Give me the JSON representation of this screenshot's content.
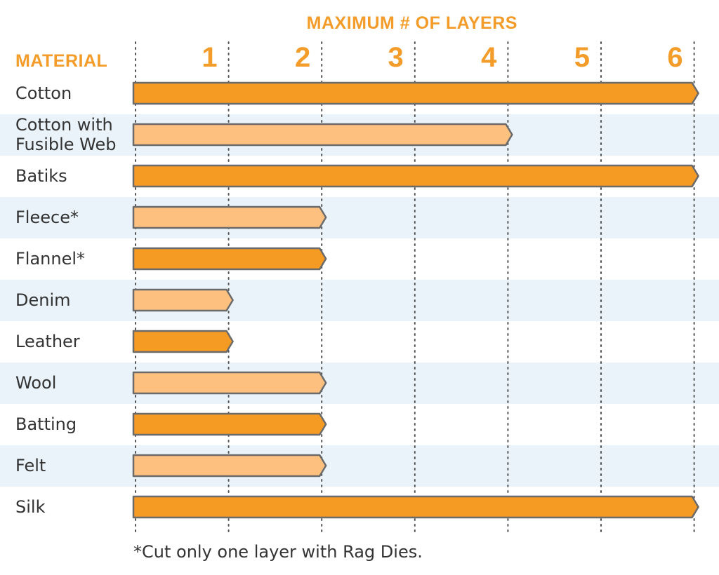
{
  "chart_data": {
    "type": "bar",
    "orientation": "horizontal",
    "title": "MAXIMUM # OF LAYERS",
    "category_header": "MATERIAL",
    "x_ticks": [
      "1",
      "2",
      "3",
      "4",
      "5",
      "6"
    ],
    "xlim": [
      0,
      6
    ],
    "categories": [
      "Cotton",
      "Cotton with Fusible Web",
      "Batiks",
      "Fleece*",
      "Flannel*",
      "Denim",
      "Leather",
      "Wool",
      "Batting",
      "Felt",
      "Silk"
    ],
    "category_lines": [
      [
        "Cotton"
      ],
      [
        "Cotton with",
        "Fusible Web"
      ],
      [
        "Batiks"
      ],
      [
        "Fleece*"
      ],
      [
        "Flannel*"
      ],
      [
        "Denim"
      ],
      [
        "Leather"
      ],
      [
        "Wool"
      ],
      [
        "Batting"
      ],
      [
        "Felt"
      ],
      [
        "Silk"
      ]
    ],
    "values": [
      6,
      4,
      6,
      2,
      2,
      1,
      1,
      2,
      2,
      2,
      6
    ],
    "footnote": "*Cut only one layer with Rag Dies.",
    "grid": "dotted vertical lines at each layer count",
    "colors": {
      "accent": "#f39c2a",
      "bar_dark": "#f59a22",
      "bar_light": "#fec07e",
      "bar_outline": "#6b6b6b",
      "row_band": "#eaf3fa",
      "text": "#333333"
    }
  }
}
